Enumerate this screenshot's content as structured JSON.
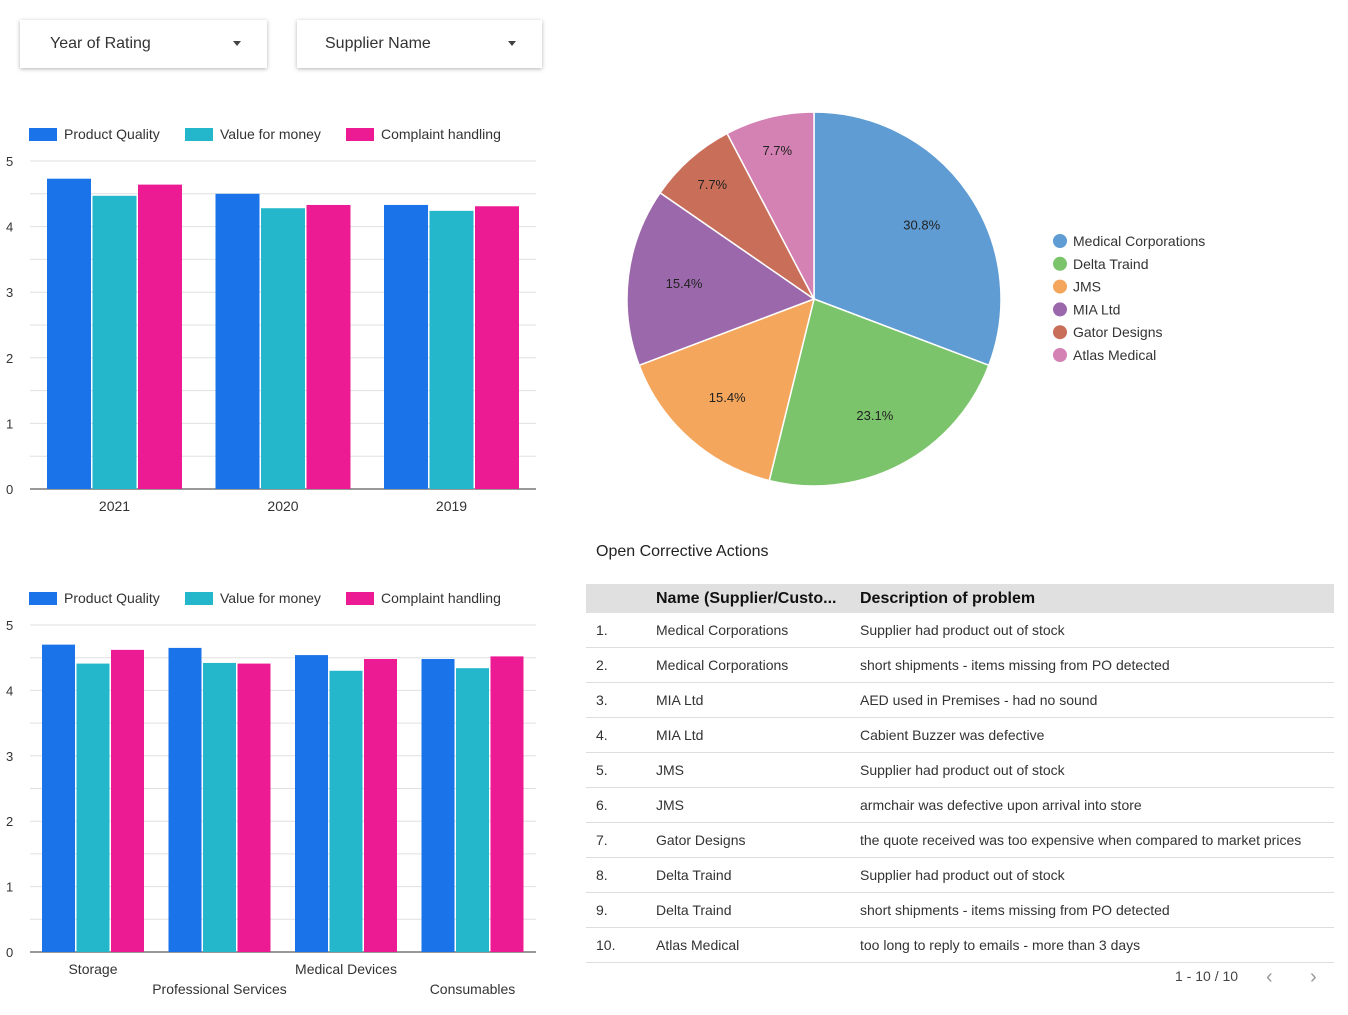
{
  "filters": {
    "year": "Year of Rating",
    "supplier": "Supplier Name"
  },
  "colors": {
    "Product Quality": "#1a73e8",
    "Value for money": "#24b6cb",
    "Complaint handling": "#ec1a93"
  },
  "chart_data": [
    {
      "type": "bar",
      "categories": [
        "2021",
        "2020",
        "2019"
      ],
      "ylim": [
        0,
        5
      ],
      "yticks": [
        "0",
        "1",
        "2",
        "3",
        "4",
        "5"
      ],
      "legend": "top-left",
      "grid": true,
      "series": [
        {
          "name": "Product Quality",
          "values": [
            4.73,
            4.5,
            4.33
          ]
        },
        {
          "name": "Value for money",
          "values": [
            4.47,
            4.28,
            4.24
          ]
        },
        {
          "name": "Complaint handling",
          "values": [
            4.64,
            4.33,
            4.31
          ]
        }
      ]
    },
    {
      "type": "bar",
      "categories": [
        "Storage",
        "Professional Services",
        "Medical Devices",
        "Consumables"
      ],
      "ylim": [
        0,
        5
      ],
      "yticks": [
        "0",
        "1",
        "2",
        "3",
        "4",
        "5"
      ],
      "legend": "top-left",
      "grid": true,
      "series": [
        {
          "name": "Product Quality",
          "values": [
            4.7,
            4.65,
            4.54,
            4.48
          ]
        },
        {
          "name": "Value for money",
          "values": [
            4.41,
            4.42,
            4.3,
            4.34
          ]
        },
        {
          "name": "Complaint handling",
          "values": [
            4.62,
            4.41,
            4.48,
            4.52
          ]
        }
      ]
    },
    {
      "type": "pie",
      "legend": "right",
      "slices": [
        {
          "name": "Medical Corporations",
          "value": 30.8,
          "label": "30.8%",
          "color": "#5e9cd3"
        },
        {
          "name": "Delta Traind",
          "value": 23.1,
          "label": "23.1%",
          "color": "#7cc46c"
        },
        {
          "name": "JMS",
          "value": 15.4,
          "label": "15.4%",
          "color": "#f5a65d"
        },
        {
          "name": "MIA Ltd",
          "value": 15.4,
          "label": "15.4%",
          "color": "#9b69ab"
        },
        {
          "name": "Gator Designs",
          "value": 7.7,
          "label": "7.7%",
          "color": "#c96f59"
        },
        {
          "name": "Atlas Medical",
          "value": 7.7,
          "label": "7.7%",
          "color": "#d481b3"
        }
      ]
    }
  ],
  "table": {
    "title": "Open Corrective Actions",
    "headers": [
      "Name (Supplier/Custo...",
      "Description of problem"
    ],
    "rows": [
      [
        "1.",
        "Medical Corporations",
        "Supplier had product out of stock"
      ],
      [
        "2.",
        "Medical Corporations",
        "short shipments - items missing from PO detected"
      ],
      [
        "3.",
        "MIA Ltd",
        "AED used in Premises - had no sound"
      ],
      [
        "4.",
        "MIA Ltd",
        "Cabient Buzzer was defective"
      ],
      [
        "5.",
        "JMS",
        "Supplier had product out of stock"
      ],
      [
        "6.",
        "JMS",
        "armchair was defective upon arrival into store"
      ],
      [
        "7.",
        "Gator Designs",
        "the quote received was too expensive when compared to market prices"
      ],
      [
        "8.",
        "Delta Traind",
        "Supplier had product out of stock"
      ],
      [
        "9.",
        "Delta Traind",
        "short shipments - items missing from PO detected"
      ],
      [
        "10.",
        "Atlas Medical",
        "too long to reply to emails - more than 3 days"
      ]
    ],
    "pagination": "1 - 10 / 10"
  }
}
